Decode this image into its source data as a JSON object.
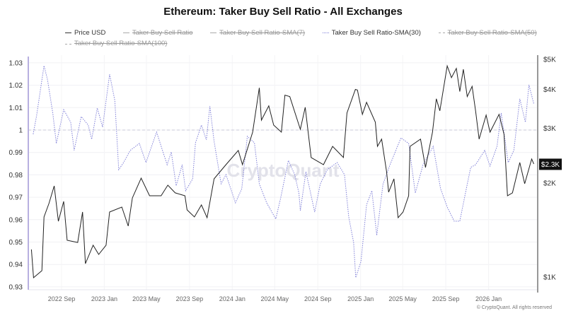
{
  "chart_data": {
    "type": "line",
    "title": "Ethereum: Taker Buy Sell Ratio - All Exchanges",
    "legend": [
      {
        "name": "Price USD",
        "active": true,
        "style": "solid"
      },
      {
        "name": "Taker Buy Sell Ratio",
        "active": false,
        "style": "solid"
      },
      {
        "name": "Taker Buy Sell Ratio-SMA(7)",
        "active": false,
        "style": "solid"
      },
      {
        "name": "Taker Buy Sell Ratio-SMA(30)",
        "active": true,
        "style": "dotted"
      },
      {
        "name": "Taker Buy Sell Ratio-SMA(50)",
        "active": false,
        "style": "dashed"
      },
      {
        "name": "Taker Buy Sell Ratio-SMA(100)",
        "active": false,
        "style": "dashed"
      }
    ],
    "legend_position": "top",
    "left_axis": {
      "ylim": [
        0.93,
        1.03
      ],
      "ticks": [
        "0.93",
        "0.94",
        "0.95",
        "0.96",
        "0.97",
        "0.98",
        "0.99",
        "1",
        "1.01",
        "1.02",
        "1.03"
      ],
      "reference_line": 1
    },
    "right_axis": {
      "scale": "log",
      "ylim": [
        1000,
        5000
      ],
      "ticks": [
        {
          "value": 1000,
          "label": "$1K"
        },
        {
          "value": 2000,
          "label": "$2K"
        },
        {
          "value": 3000,
          "label": "$3K"
        },
        {
          "value": 4000,
          "label": "$4K"
        },
        {
          "value": 5000,
          "label": "$5K"
        }
      ],
      "current_value_label": "$2.3K",
      "current_value": 2300
    },
    "x_ticks": [
      {
        "date": "2022-09-01",
        "label": "2022 Sep"
      },
      {
        "date": "2023-01-01",
        "label": "2023 Jan"
      },
      {
        "date": "2023-05-01",
        "label": "2023 May"
      },
      {
        "date": "2023-09-01",
        "label": "2023 Sep"
      },
      {
        "date": "2024-01-01",
        "label": "2024 Jan"
      },
      {
        "date": "2024-05-01",
        "label": "2024 May"
      },
      {
        "date": "2024-09-01",
        "label": "2024 Sep"
      },
      {
        "date": "2025-01-01",
        "label": "2025 Jan"
      },
      {
        "date": "2025-05-01",
        "label": "2025 May"
      },
      {
        "date": "2025-09-01",
        "label": "2025 Sep"
      },
      {
        "date": "2026-01-01",
        "label": "2026 Jan"
      }
    ],
    "grid": true,
    "colors": {
      "price": "#222222",
      "sma30": "#8080d8",
      "reference": "#c8c8d8",
      "left_axis": "#b8b0e0"
    },
    "series": [
      {
        "name": "Price USD",
        "axis": "right",
        "points": [
          [
            "2022-06-07",
            1226
          ],
          [
            "2022-06-13",
            995
          ],
          [
            "2022-07-07",
            1048
          ],
          [
            "2022-07-13",
            1559
          ],
          [
            "2022-07-27",
            1722
          ],
          [
            "2022-08-11",
            1960
          ],
          [
            "2022-08-23",
            1510
          ],
          [
            "2022-09-07",
            1748
          ],
          [
            "2022-09-17",
            1312
          ],
          [
            "2022-10-17",
            1291
          ],
          [
            "2022-10-31",
            1617
          ],
          [
            "2022-11-08",
            1104
          ],
          [
            "2022-11-30",
            1265
          ],
          [
            "2022-12-16",
            1182
          ],
          [
            "2023-01-06",
            1265
          ],
          [
            "2023-01-16",
            1617
          ],
          [
            "2023-02-20",
            1677
          ],
          [
            "2023-03-10",
            1457
          ],
          [
            "2023-03-22",
            1794
          ],
          [
            "2023-04-16",
            2076
          ],
          [
            "2023-05-10",
            1823
          ],
          [
            "2023-06-12",
            1823
          ],
          [
            "2023-07-01",
            1971
          ],
          [
            "2023-07-22",
            1862
          ],
          [
            "2023-08-19",
            1823
          ],
          [
            "2023-08-25",
            1642
          ],
          [
            "2023-09-15",
            1559
          ],
          [
            "2023-10-05",
            1703
          ],
          [
            "2023-10-21",
            1550
          ],
          [
            "2023-11-10",
            2066
          ],
          [
            "2023-12-14",
            2294
          ],
          [
            "2024-01-18",
            2548
          ],
          [
            "2024-01-30",
            2294
          ],
          [
            "2024-02-28",
            2916
          ],
          [
            "2024-03-18",
            4046
          ],
          [
            "2024-03-24",
            3187
          ],
          [
            "2024-04-14",
            3541
          ],
          [
            "2024-04-28",
            3073
          ],
          [
            "2024-05-20",
            2916
          ],
          [
            "2024-05-30",
            3833
          ],
          [
            "2024-06-13",
            3792
          ],
          [
            "2024-07-13",
            2978
          ],
          [
            "2024-07-27",
            3504
          ],
          [
            "2024-08-13",
            2418
          ],
          [
            "2024-09-17",
            2294
          ],
          [
            "2024-10-13",
            2626
          ],
          [
            "2024-11-13",
            2418
          ],
          [
            "2024-11-23",
            3361
          ],
          [
            "2024-12-17",
            4000
          ],
          [
            "2024-12-23",
            3981
          ],
          [
            "2025-01-06",
            3326
          ],
          [
            "2025-01-18",
            3636
          ],
          [
            "2025-02-12",
            3140
          ],
          [
            "2025-02-18",
            2626
          ],
          [
            "2025-03-02",
            2770
          ],
          [
            "2025-03-16",
            2178
          ],
          [
            "2025-03-22",
            1872
          ],
          [
            "2025-04-06",
            2066
          ],
          [
            "2025-04-18",
            1550
          ],
          [
            "2025-05-02",
            1617
          ],
          [
            "2025-05-18",
            1823
          ],
          [
            "2025-05-22",
            2626
          ],
          [
            "2025-06-21",
            2770
          ],
          [
            "2025-07-05",
            2246
          ],
          [
            "2025-07-25",
            2916
          ],
          [
            "2025-08-05",
            3732
          ],
          [
            "2025-08-15",
            3415
          ],
          [
            "2025-09-05",
            4760
          ],
          [
            "2025-09-17",
            4363
          ],
          [
            "2025-10-01",
            4670
          ],
          [
            "2025-10-11",
            3937
          ],
          [
            "2025-10-21",
            4640
          ],
          [
            "2025-11-01",
            3792
          ],
          [
            "2025-11-15",
            4090
          ],
          [
            "2025-11-25",
            3415
          ],
          [
            "2025-12-05",
            2770
          ],
          [
            "2025-12-25",
            3308
          ],
          [
            "2026-01-05",
            2916
          ],
          [
            "2026-01-31",
            3326
          ],
          [
            "2026-02-14",
            2869
          ],
          [
            "2026-02-24",
            1823
          ],
          [
            "2026-03-10",
            1862
          ],
          [
            "2026-03-31",
            2330
          ],
          [
            "2026-04-14",
            1992
          ],
          [
            "2026-05-04",
            2392
          ],
          [
            "2026-05-10",
            2306
          ]
        ]
      },
      {
        "name": "Taker Buy Sell Ratio-SMA(30)",
        "axis": "left",
        "points": [
          [
            "2022-06-12",
            0.9981
          ],
          [
            "2022-06-22",
            1.0066
          ],
          [
            "2022-07-13",
            1.0287
          ],
          [
            "2022-07-23",
            1.0224
          ],
          [
            "2022-08-07",
            1.0076
          ],
          [
            "2022-08-17",
            0.994
          ],
          [
            "2022-09-07",
            1.0091
          ],
          [
            "2022-09-27",
            1.0035
          ],
          [
            "2022-10-07",
            0.9909
          ],
          [
            "2022-10-27",
            1.006
          ],
          [
            "2022-11-16",
            1.0022
          ],
          [
            "2022-11-26",
            0.9959
          ],
          [
            "2022-12-12",
            1.0098
          ],
          [
            "2022-12-27",
            1.0013
          ],
          [
            "2023-01-16",
            1.0249
          ],
          [
            "2023-01-31",
            1.0132
          ],
          [
            "2023-02-11",
            0.9823
          ],
          [
            "2023-02-25",
            0.9855
          ],
          [
            "2023-03-16",
            0.9909
          ],
          [
            "2023-04-11",
            0.994
          ],
          [
            "2023-04-30",
            0.9855
          ],
          [
            "2023-05-30",
            0.9991
          ],
          [
            "2023-06-29",
            0.9845
          ],
          [
            "2023-07-11",
            0.9902
          ],
          [
            "2023-07-25",
            0.9751
          ],
          [
            "2023-08-11",
            0.9845
          ],
          [
            "2023-08-21",
            0.9729
          ],
          [
            "2023-09-10",
            0.9782
          ],
          [
            "2023-09-18",
            0.9943
          ],
          [
            "2023-10-05",
            1.0022
          ],
          [
            "2023-10-19",
            0.9956
          ],
          [
            "2023-10-29",
            1.0107
          ],
          [
            "2023-11-10",
            0.995
          ],
          [
            "2023-11-30",
            0.976
          ],
          [
            "2023-12-14",
            0.9801
          ],
          [
            "2024-01-10",
            0.9675
          ],
          [
            "2024-01-28",
            0.9738
          ],
          [
            "2024-02-13",
            0.9972
          ],
          [
            "2024-03-04",
            0.9943
          ],
          [
            "2024-03-18",
            0.976
          ],
          [
            "2024-04-08",
            0.9675
          ],
          [
            "2024-05-04",
            0.9603
          ],
          [
            "2024-05-18",
            0.9697
          ],
          [
            "2024-06-09",
            0.9864
          ],
          [
            "2024-06-27",
            0.9801
          ],
          [
            "2024-07-09",
            0.9719
          ],
          [
            "2024-07-13",
            0.964
          ],
          [
            "2024-07-29",
            0.9814
          ],
          [
            "2024-08-23",
            0.9634
          ],
          [
            "2024-09-08",
            0.976
          ],
          [
            "2024-09-28",
            0.9823
          ],
          [
            "2024-10-26",
            0.9855
          ],
          [
            "2024-11-16",
            0.9801
          ],
          [
            "2024-11-28",
            0.9612
          ],
          [
            "2024-12-12",
            0.9498
          ],
          [
            "2024-12-18",
            0.9341
          ],
          [
            "2025-01-02",
            0.9413
          ],
          [
            "2025-01-18",
            0.9666
          ],
          [
            "2025-02-02",
            0.9729
          ],
          [
            "2025-02-16",
            0.953
          ],
          [
            "2025-03-06",
            0.976
          ],
          [
            "2025-03-26",
            0.9845
          ],
          [
            "2025-04-26",
            0.9965
          ],
          [
            "2025-05-18",
            0.994
          ],
          [
            "2025-06-06",
            0.9719
          ],
          [
            "2025-06-28",
            0.9845
          ],
          [
            "2025-07-27",
            0.9927
          ],
          [
            "2025-08-17",
            0.9738
          ],
          [
            "2025-09-05",
            0.9656
          ],
          [
            "2025-09-25",
            0.9593
          ],
          [
            "2025-10-11",
            0.9593
          ],
          [
            "2025-10-27",
            0.9719
          ],
          [
            "2025-11-11",
            0.9833
          ],
          [
            "2025-11-25",
            0.9845
          ],
          [
            "2025-12-21",
            0.9909
          ],
          [
            "2026-01-05",
            0.9839
          ],
          [
            "2026-01-25",
            0.9927
          ],
          [
            "2026-02-06",
            1.0076
          ],
          [
            "2026-02-26",
            0.9855
          ],
          [
            "2026-03-14",
            0.9909
          ],
          [
            "2026-03-31",
            1.0139
          ],
          [
            "2026-04-16",
            1.0035
          ],
          [
            "2026-04-26",
            1.0202
          ],
          [
            "2026-05-10",
            1.0117
          ]
        ]
      }
    ],
    "watermark": "CryptoQuant",
    "copyright": "© CryptoQuant. All rights reserved"
  }
}
